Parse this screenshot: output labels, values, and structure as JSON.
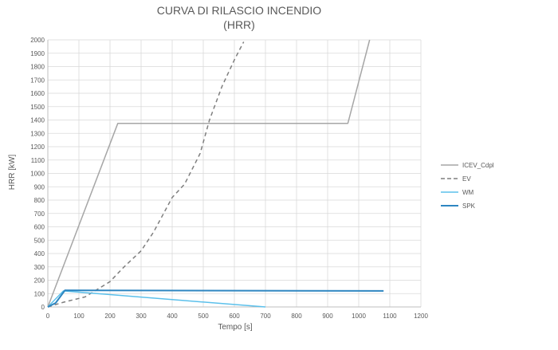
{
  "chart_data": {
    "type": "line",
    "title": "CURVA DI RILASCIO INCENDIO",
    "subtitle": "(HRR)",
    "xlabel": "Tempo [s]",
    "ylabel": "HRR [kW]",
    "xlim": [
      0,
      1200
    ],
    "ylim": [
      0,
      2000
    ],
    "xticks": [
      0,
      100,
      200,
      300,
      400,
      500,
      600,
      700,
      800,
      900,
      1000,
      1100,
      1200
    ],
    "yticks": [
      0,
      100,
      200,
      300,
      400,
      500,
      600,
      700,
      800,
      900,
      1000,
      1100,
      1200,
      1300,
      1400,
      1500,
      1600,
      1700,
      1800,
      1900,
      2000
    ],
    "grid": true,
    "legend_position": "right",
    "series": [
      {
        "name": "ICEV_Cdpl",
        "color": "#a6a6a6",
        "dash": "solid",
        "points": [
          [
            0,
            0
          ],
          [
            225,
            1375
          ],
          [
            965,
            1375
          ],
          [
            1035,
            2000
          ]
        ]
      },
      {
        "name": "EV",
        "color": "#7f7f7f",
        "dash": "dashed",
        "points": [
          [
            0,
            0
          ],
          [
            50,
            35
          ],
          [
            120,
            75
          ],
          [
            200,
            190
          ],
          [
            245,
            300
          ],
          [
            300,
            420
          ],
          [
            340,
            560
          ],
          [
            400,
            820
          ],
          [
            440,
            920
          ],
          [
            490,
            1150
          ],
          [
            520,
            1400
          ],
          [
            560,
            1650
          ],
          [
            600,
            1850
          ],
          [
            630,
            1985
          ]
        ]
      },
      {
        "name": "WM",
        "color": "#5bc0eb",
        "dash": "solid",
        "points": [
          [
            0,
            0
          ],
          [
            50,
            120
          ],
          [
            700,
            0
          ]
        ]
      },
      {
        "name": "SPK",
        "color": "#2e86c1",
        "dash": "solid",
        "points": [
          [
            0,
            0
          ],
          [
            25,
            30
          ],
          [
            55,
            125
          ],
          [
            1080,
            120
          ]
        ]
      }
    ]
  }
}
